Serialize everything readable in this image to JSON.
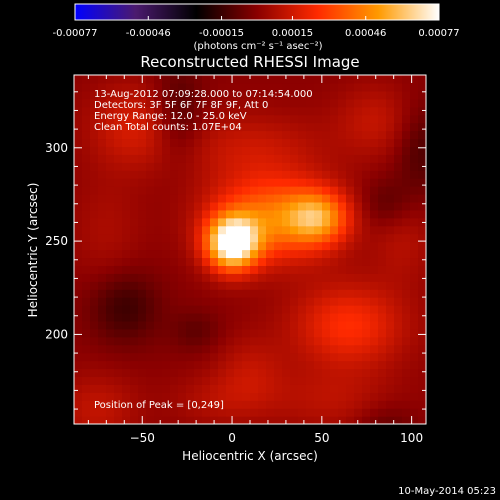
{
  "chart_data": {
    "type": "heatmap",
    "title": "Reconstructed RHESSI Image",
    "colorbar": {
      "ticks": [
        "-0.00077",
        "-0.00046",
        "-0.00015",
        "0.00015",
        "0.00046",
        "0.00077"
      ],
      "tick_values": [
        -0.00077,
        -0.00046,
        -0.00015,
        0.00015,
        0.00046,
        0.00077
      ],
      "range": [
        -0.00077,
        0.00077
      ],
      "units_label": "(photons cm⁻² s⁻¹ asec⁻²)",
      "colors": [
        "#0000ff",
        "#4b1a6e",
        "#000000",
        "#8a0000",
        "#ff2a00",
        "#ff9a00",
        "#ffffff"
      ]
    },
    "xlabel": "Heliocentric X (arcsec)",
    "ylabel": "Heliocentric Y (arcsec)",
    "xlim": [
      -88,
      108
    ],
    "ylim": [
      152,
      339
    ],
    "xticks": [
      -50,
      0,
      50,
      100
    ],
    "yticks": [
      200,
      250,
      300
    ],
    "info_lines": [
      "13-Aug-2012 07:09:28.000 to 07:14:54.000",
      "Detectors: 3F 5F 6F 7F 8F 9F, Att 0",
      "Energy Range: 12.0 - 25.0 keV",
      "Clean     Total counts: 1.07E+04"
    ],
    "peak_text": "Position of Peak = [0,249]",
    "peak": [
      0,
      249
    ],
    "sources": [
      {
        "x": 0,
        "y": 249,
        "sx": 10,
        "sy": 10,
        "amp": 0.00077
      },
      {
        "x": 22,
        "y": 262,
        "sx": 24,
        "sy": 16,
        "amp": 0.00042
      },
      {
        "x": 48,
        "y": 263,
        "sx": 12,
        "sy": 10,
        "amp": 0.0004
      },
      {
        "x": 65,
        "y": 205,
        "sx": 22,
        "sy": 16,
        "amp": 0.00026
      },
      {
        "x": -55,
        "y": 312,
        "sx": 18,
        "sy": 16,
        "amp": 0.00016
      },
      {
        "x": 10,
        "y": 300,
        "sx": 30,
        "sy": 14,
        "amp": 0.00013
      },
      {
        "x": 80,
        "y": 315,
        "sx": 16,
        "sy": 14,
        "amp": 0.00012
      },
      {
        "x": 10,
        "y": 180,
        "sx": 14,
        "sy": 14,
        "amp": 0.00011
      },
      {
        "x": 95,
        "y": 250,
        "sx": 12,
        "sy": 16,
        "amp": 9e-05
      },
      {
        "x": -75,
        "y": 160,
        "sx": 16,
        "sy": 14,
        "amp": 0.00012
      },
      {
        "x": 55,
        "y": 165,
        "sx": 26,
        "sy": 12,
        "amp": 0.0001
      },
      {
        "x": -10,
        "y": 165,
        "sx": 18,
        "sy": 10,
        "amp": 8e-05
      },
      {
        "x": -70,
        "y": 255,
        "sx": 14,
        "sy": 22,
        "amp": 7e-05
      },
      {
        "x": -60,
        "y": 215,
        "sx": 14,
        "sy": 14,
        "amp": -0.00015
      },
      {
        "x": -30,
        "y": 318,
        "sx": 10,
        "sy": 18,
        "amp": -0.00014
      },
      {
        "x": 105,
        "y": 300,
        "sx": 10,
        "sy": 18,
        "amp": -0.00012
      },
      {
        "x": 85,
        "y": 270,
        "sx": 10,
        "sy": 10,
        "amp": -0.0001
      },
      {
        "x": -20,
        "y": 202,
        "sx": 10,
        "sy": 8,
        "amp": -8e-05
      },
      {
        "x": 85,
        "y": 150,
        "sx": 12,
        "sy": 10,
        "amp": -9e-05
      }
    ]
  },
  "footer": {
    "date": "10-May-2014 05:23"
  }
}
